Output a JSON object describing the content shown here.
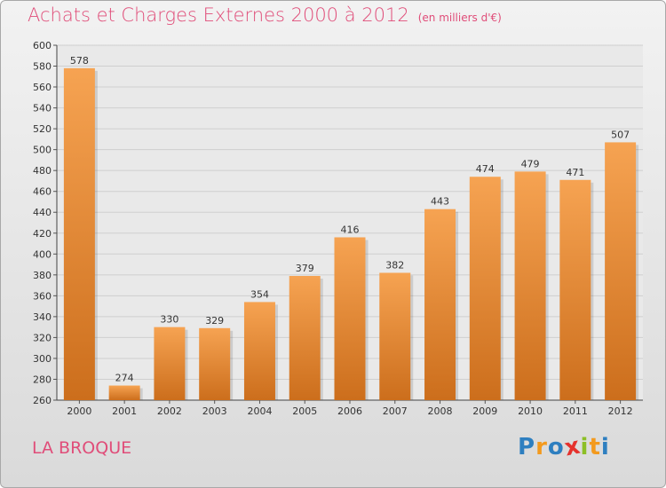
{
  "title": "Achats et Charges Externes 2000 à 2012",
  "unit": "(en milliers d'€)",
  "city": "LA BROQUE",
  "logo": {
    "letters": [
      "P",
      "r",
      "o",
      "x",
      "i",
      "t",
      "i"
    ],
    "colors": [
      "#2e7fc0",
      "#f39a1e",
      "#2e7fc0",
      "#e5322d",
      "#8cbf26",
      "#f39a1e",
      "#2e7fc0"
    ]
  },
  "colors": {
    "accent": "#e04d79",
    "bar_light": "#f6a352",
    "bar_dark": "#cc6e1c",
    "grid": "#cfcfcf"
  },
  "chart_data": {
    "type": "bar",
    "categories": [
      "2000",
      "2001",
      "2002",
      "2003",
      "2004",
      "2005",
      "2006",
      "2007",
      "2008",
      "2009",
      "2010",
      "2011",
      "2012"
    ],
    "values": [
      578,
      274,
      330,
      329,
      354,
      379,
      416,
      382,
      443,
      474,
      479,
      471,
      507
    ],
    "ylim": [
      260,
      600
    ],
    "yticks": [
      260,
      280,
      300,
      320,
      340,
      360,
      380,
      400,
      420,
      440,
      460,
      480,
      500,
      520,
      540,
      560,
      580,
      600
    ],
    "grid": true,
    "xlabel": "",
    "ylabel": ""
  }
}
